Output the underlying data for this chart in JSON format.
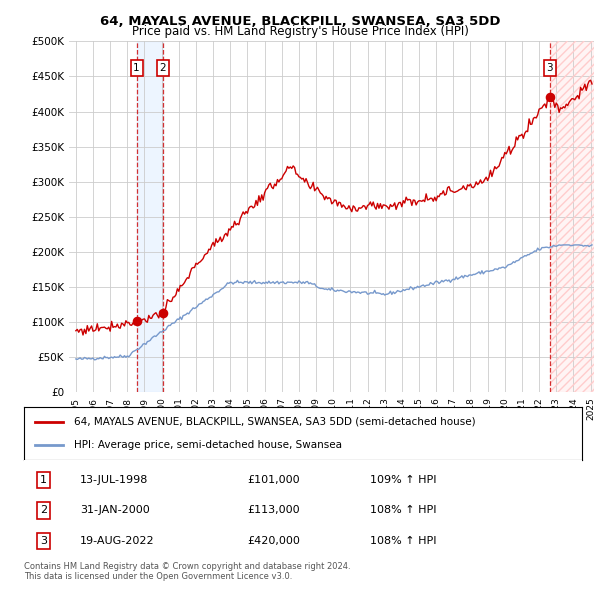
{
  "title1": "64, MAYALS AVENUE, BLACKPILL, SWANSEA, SA3 5DD",
  "title2": "Price paid vs. HM Land Registry's House Price Index (HPI)",
  "legend_label1": "64, MAYALS AVENUE, BLACKPILL, SWANSEA, SA3 5DD (semi-detached house)",
  "legend_label2": "HPI: Average price, semi-detached house, Swansea",
  "footer1": "Contains HM Land Registry data © Crown copyright and database right 2024.",
  "footer2": "This data is licensed under the Open Government Licence v3.0.",
  "transactions": [
    {
      "num": 1,
      "date": "13-JUL-1998",
      "price": 101000,
      "hpi_pct": "109%",
      "year": 1998.54
    },
    {
      "num": 2,
      "date": "31-JAN-2000",
      "price": 113000,
      "hpi_pct": "108%",
      "year": 2000.08
    },
    {
      "num": 3,
      "date": "19-AUG-2022",
      "price": 420000,
      "hpi_pct": "108%",
      "year": 2022.63
    }
  ],
  "price_color": "#cc0000",
  "hpi_color": "#7799cc",
  "vline_color": "#cc0000",
  "shade_color_blue": "#ddeeff",
  "shade_color_right": "#ffeeee",
  "ylim": [
    0,
    500000
  ],
  "yticks": [
    0,
    50000,
    100000,
    150000,
    200000,
    250000,
    300000,
    350000,
    400000,
    450000,
    500000
  ],
  "xlim_start": 1994.6,
  "xlim_end": 2025.2,
  "background_color": "#ffffff",
  "grid_color": "#cccccc",
  "hatch_start": 2022.63,
  "hatch_end": 2025.2,
  "shade1_start": 1998.54,
  "shade1_end": 2000.08
}
